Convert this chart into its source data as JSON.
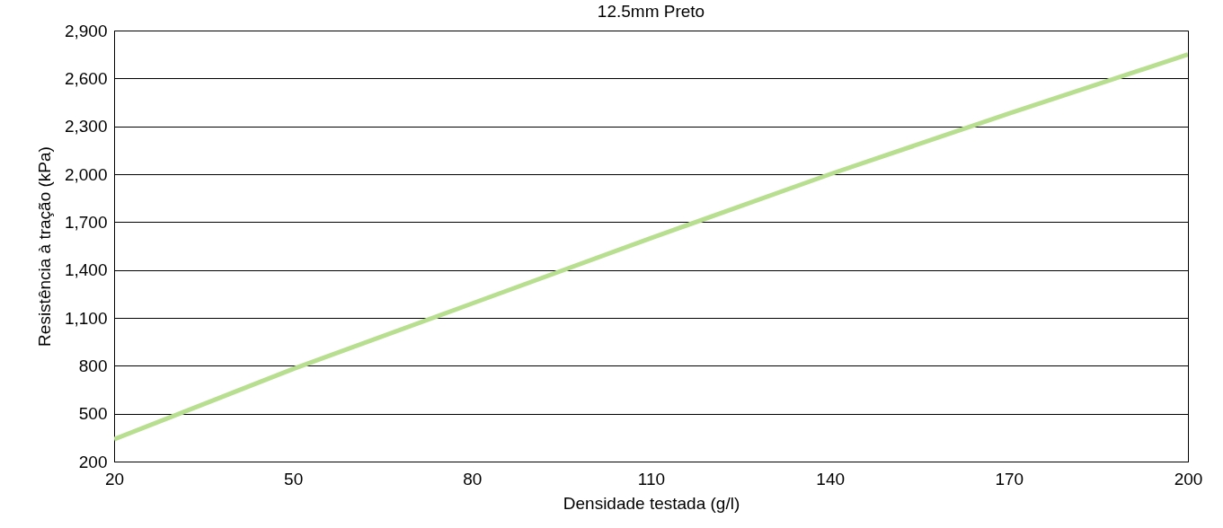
{
  "chart_data": {
    "type": "line",
    "title": "12.5mm Preto",
    "xlabel": "Densidade testada (g/l)",
    "ylabel": "Resistência à tração (kPa)",
    "x": [
      20,
      50,
      80,
      110,
      140,
      170,
      200
    ],
    "series": [
      {
        "color": "#b8df90",
        "values": [
          340,
          780,
          1190,
          1600,
          2000,
          2380,
          2750
        ]
      }
    ],
    "xlim": [
      20,
      200
    ],
    "xticks": [
      20,
      50,
      80,
      110,
      140,
      170,
      200
    ],
    "ylim": [
      200,
      2900
    ],
    "yticks": [
      {
        "value": 200,
        "label": "200"
      },
      {
        "value": 500,
        "label": "500"
      },
      {
        "value": 800,
        "label": "800"
      },
      {
        "value": 1100,
        "label": "1,100"
      },
      {
        "value": 1400,
        "label": "1,400"
      },
      {
        "value": 1700,
        "label": "1,700"
      },
      {
        "value": 2000,
        "label": "2,000"
      },
      {
        "value": 2300,
        "label": "2,300"
      },
      {
        "value": 2600,
        "label": "2,600"
      },
      {
        "value": 2900,
        "label": "2,900"
      }
    ],
    "grid": "y",
    "marker": "none",
    "line_style": "solid"
  }
}
